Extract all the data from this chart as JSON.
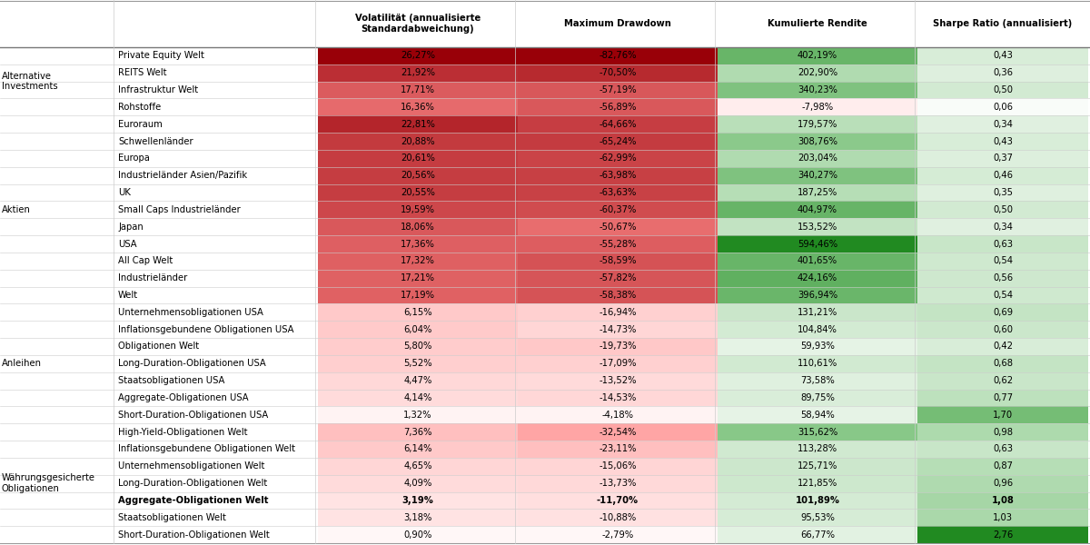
{
  "categories": [
    [
      "Alternative\nInvestments",
      "Private Equity Welt"
    ],
    [
      "",
      "REITS Welt"
    ],
    [
      "",
      "Infrastruktur Welt"
    ],
    [
      "",
      "Rohstoffe"
    ],
    [
      "Aktien",
      "Euroraum"
    ],
    [
      "",
      "Schwellenländer"
    ],
    [
      "",
      "Europa"
    ],
    [
      "",
      "Industrieländer Asien/Pazifik"
    ],
    [
      "",
      "UK"
    ],
    [
      "",
      "Small Caps Industrieländer"
    ],
    [
      "",
      "Japan"
    ],
    [
      "",
      "USA"
    ],
    [
      "",
      "All Cap Welt"
    ],
    [
      "",
      "Industrieländer"
    ],
    [
      "",
      "Welt"
    ],
    [
      "Anleihen",
      "Unternehmensobligationen USA"
    ],
    [
      "",
      "Inflationsgebundene Obligationen USA"
    ],
    [
      "",
      "Obligationen Welt"
    ],
    [
      "",
      "Long-Duration-Obligationen USA"
    ],
    [
      "",
      "Staatsobligationen USA"
    ],
    [
      "",
      "Aggregate-Obligationen USA"
    ],
    [
      "",
      "Short-Duration-Obligationen USA"
    ],
    [
      "Währungsgesicherte\nObligationen",
      "High-Yield-Obligationen Welt"
    ],
    [
      "",
      "Inflationsgebundene Obligationen Welt"
    ],
    [
      "",
      "Unternehmensobligationen Welt"
    ],
    [
      "",
      "Long-Duration-Obligationen Welt"
    ],
    [
      "",
      "Aggregate-Obligationen Welt"
    ],
    [
      "",
      "Staatsobligationen Welt"
    ],
    [
      "",
      "Short-Duration-Obligationen Welt"
    ]
  ],
  "bold_row": 26,
  "volatility": [
    "26,27%",
    "21,92%",
    "17,71%",
    "16,36%",
    "22,81%",
    "20,88%",
    "20,61%",
    "20,56%",
    "20,55%",
    "19,59%",
    "18,06%",
    "17,36%",
    "17,32%",
    "17,21%",
    "17,19%",
    "6,15%",
    "6,04%",
    "5,80%",
    "5,52%",
    "4,47%",
    "4,14%",
    "1,32%",
    "7,36%",
    "6,14%",
    "4,65%",
    "4,09%",
    "3,19%",
    "3,18%",
    "0,90%"
  ],
  "max_drawdown": [
    "-82,76%",
    "-70,50%",
    "-57,19%",
    "-56,89%",
    "-64,66%",
    "-65,24%",
    "-62,99%",
    "-63,98%",
    "-63,63%",
    "-60,37%",
    "-50,67%",
    "-55,28%",
    "-58,59%",
    "-57,82%",
    "-58,38%",
    "-16,94%",
    "-14,73%",
    "-19,73%",
    "-17,09%",
    "-13,52%",
    "-14,53%",
    "-4,18%",
    "-32,54%",
    "-23,11%",
    "-15,06%",
    "-13,73%",
    "-11,70%",
    "-10,88%",
    "-2,79%"
  ],
  "kum_rendite": [
    "402,19%",
    "202,90%",
    "340,23%",
    "-7,98%",
    "179,57%",
    "308,76%",
    "203,04%",
    "340,27%",
    "187,25%",
    "404,97%",
    "153,52%",
    "594,46%",
    "401,65%",
    "424,16%",
    "396,94%",
    "131,21%",
    "104,84%",
    "59,93%",
    "110,61%",
    "73,58%",
    "89,75%",
    "58,94%",
    "315,62%",
    "113,28%",
    "125,71%",
    "121,85%",
    "101,89%",
    "95,53%",
    "66,77%"
  ],
  "sharpe": [
    "0,43",
    "0,36",
    "0,50",
    "0,06",
    "0,34",
    "0,43",
    "0,37",
    "0,46",
    "0,35",
    "0,50",
    "0,34",
    "0,63",
    "0,54",
    "0,56",
    "0,54",
    "0,69",
    "0,60",
    "0,42",
    "0,68",
    "0,62",
    "0,77",
    "1,70",
    "0,98",
    "0,63",
    "0,87",
    "0,96",
    "1,08",
    "1,03",
    "2,76"
  ],
  "volatility_vals": [
    26.27,
    21.92,
    17.71,
    16.36,
    22.81,
    20.88,
    20.61,
    20.56,
    20.55,
    19.59,
    18.06,
    17.36,
    17.32,
    17.21,
    17.19,
    6.15,
    6.04,
    5.8,
    5.52,
    4.47,
    4.14,
    1.32,
    7.36,
    6.14,
    4.65,
    4.09,
    3.19,
    3.18,
    0.9
  ],
  "max_drawdown_vals": [
    -82.76,
    -70.5,
    -57.19,
    -56.89,
    -64.66,
    -65.24,
    -62.99,
    -63.98,
    -63.63,
    -60.37,
    -50.67,
    -55.28,
    -58.59,
    -57.82,
    -58.38,
    -16.94,
    -14.73,
    -19.73,
    -17.09,
    -13.52,
    -14.53,
    -4.18,
    -32.54,
    -23.11,
    -15.06,
    -13.73,
    -11.7,
    -10.88,
    -2.79
  ],
  "kum_rendite_vals": [
    402.19,
    202.9,
    340.23,
    -7.98,
    179.57,
    308.76,
    203.04,
    340.27,
    187.25,
    404.97,
    153.52,
    594.46,
    401.65,
    424.16,
    396.94,
    131.21,
    104.84,
    59.93,
    110.61,
    73.58,
    89.75,
    58.94,
    315.62,
    113.28,
    125.71,
    121.85,
    101.89,
    95.53,
    66.77
  ],
  "sharpe_vals": [
    0.43,
    0.36,
    0.5,
    0.06,
    0.34,
    0.43,
    0.37,
    0.46,
    0.35,
    0.5,
    0.34,
    0.63,
    0.54,
    0.56,
    0.54,
    0.69,
    0.6,
    0.42,
    0.68,
    0.62,
    0.77,
    1.7,
    0.98,
    0.63,
    0.87,
    0.96,
    1.08,
    1.03,
    2.76
  ],
  "col_headers": [
    "Volatilität (annualisierte\nStandardabweichung)",
    "Maximum Drawdown",
    "Kumulierte Rendite",
    "Sharpe Ratio (annualisiert)"
  ],
  "group_starts": [
    0,
    4,
    15,
    22
  ],
  "group_lens": [
    4,
    11,
    7,
    7
  ],
  "group_labels": [
    "Alternative\nInvestments",
    "Aktien",
    "Anleihen",
    "Währungsgesicherte\nObligationen"
  ]
}
